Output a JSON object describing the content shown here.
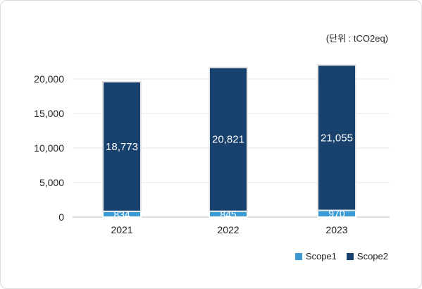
{
  "chart_data": {
    "type": "bar",
    "stacked": true,
    "unit_label": "(단위 : tCO2eq)",
    "categories": [
      "2021",
      "2022",
      "2023"
    ],
    "series": [
      {
        "name": "Scope1",
        "values": [
          834,
          845,
          970
        ],
        "color": "#3b9ad3"
      },
      {
        "name": "Scope2",
        "values": [
          18773,
          20821,
          21055
        ],
        "color": "#18416e"
      }
    ],
    "data_labels": {
      "Scope1": [
        "834",
        "845",
        "970"
      ],
      "Scope2": [
        "18,773",
        "20,821",
        "21,055"
      ]
    },
    "y_ticks": [
      "0",
      "5,000",
      "10,000",
      "15,000",
      "20,000"
    ],
    "ylim": [
      0,
      20000
    ],
    "grid": true,
    "legend_position": "bottom-right"
  }
}
